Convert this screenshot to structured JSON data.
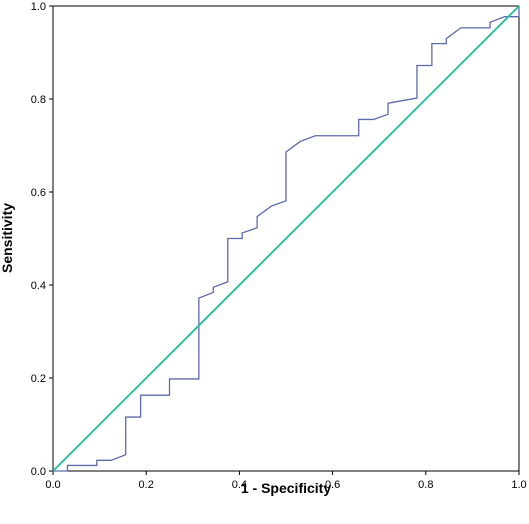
{
  "chart_data": {
    "type": "line",
    "title": "",
    "xlabel": "1 - Specificity",
    "ylabel": "Sensitivity",
    "xlim": [
      0.0,
      1.0
    ],
    "ylim": [
      0.0,
      1.0
    ],
    "x_ticks": [
      "0.0",
      "0.2",
      "0.4",
      "0.6",
      "0.8",
      "1.0"
    ],
    "y_ticks": [
      "0.0",
      "0.2",
      "0.4",
      "0.6",
      "0.8",
      "1.0"
    ],
    "grid": false,
    "legend": "none",
    "series": [
      {
        "color": "#5e6aaa",
        "x": [
          0.0,
          0.031,
          0.031,
          0.094,
          0.094,
          0.125,
          0.156,
          0.156,
          0.188,
          0.188,
          0.25,
          0.25,
          0.313,
          0.313,
          0.344,
          0.344,
          0.375,
          0.375,
          0.406,
          0.406,
          0.438,
          0.438,
          0.469,
          0.5,
          0.5,
          0.531,
          0.563,
          0.656,
          0.656,
          0.688,
          0.719,
          0.719,
          0.781,
          0.781,
          0.813,
          0.813,
          0.844,
          0.844,
          0.875,
          0.938,
          0.938,
          0.969,
          1.0,
          1.0
        ],
        "y": [
          0.0,
          0.0,
          0.012,
          0.012,
          0.023,
          0.023,
          0.035,
          0.116,
          0.116,
          0.163,
          0.163,
          0.198,
          0.198,
          0.372,
          0.384,
          0.395,
          0.407,
          0.5,
          0.5,
          0.512,
          0.523,
          0.547,
          0.57,
          0.581,
          0.686,
          0.709,
          0.721,
          0.721,
          0.756,
          0.756,
          0.767,
          0.791,
          0.802,
          0.872,
          0.872,
          0.919,
          0.919,
          0.93,
          0.953,
          0.953,
          0.965,
          0.977,
          0.977,
          1.0
        ]
      },
      {
        "color": "#1fbf9b",
        "x": [
          0.0,
          1.0
        ],
        "y": [
          0.0,
          1.0
        ]
      }
    ]
  }
}
